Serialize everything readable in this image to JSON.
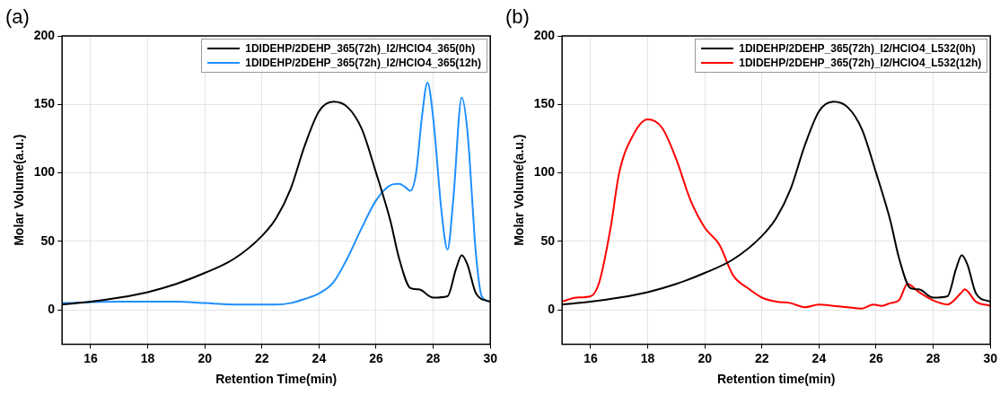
{
  "chart_data": [
    {
      "type": "line",
      "annotations": [
        "(a)"
      ],
      "xlabel": "Retention Time(min)",
      "ylabel": "Molar Volume(a.u.)",
      "xlim": [
        15,
        30
      ],
      "xticks": [
        16,
        18,
        20,
        22,
        24,
        26,
        28,
        30
      ],
      "ylim": [
        -25,
        200
      ],
      "yticks": [
        0,
        50,
        100,
        150,
        200
      ],
      "grid": true,
      "legend": "top right",
      "marker": "none",
      "line_style": "solid",
      "series": [
        {
          "name": "1DIDEHP/2DEHP_365(72h)_I2/HClO4_365(0h)",
          "color": "#000000",
          "x": [
            15,
            16,
            17,
            18,
            19,
            20,
            21,
            22,
            22.5,
            23,
            23.5,
            24,
            24.5,
            25,
            25.5,
            26,
            26.5,
            26.8,
            27.2,
            27.5,
            28,
            28.5,
            28.8,
            29,
            29.2,
            29.5,
            30
          ],
          "values": [
            4,
            6,
            9,
            13,
            19,
            27,
            37,
            54,
            67,
            88,
            120,
            145,
            152,
            148,
            132,
            100,
            65,
            38,
            16,
            15,
            9,
            10,
            30,
            40,
            33,
            12,
            6
          ]
        },
        {
          "name": "1DIDEHP/2DEHP_365(72h)_I2/HClO4_365(12h)",
          "color": "#1e8fff",
          "x": [
            15,
            17,
            18,
            19,
            20,
            21,
            22,
            22.5,
            23,
            23.5,
            24,
            24.5,
            25,
            25.5,
            26,
            26.5,
            26.8,
            27,
            27.2,
            27.4,
            27.6,
            27.8,
            28,
            28.3,
            28.5,
            28.7,
            29,
            29.2,
            29.5,
            29.7,
            30
          ],
          "values": [
            5,
            6,
            6,
            6,
            5,
            4,
            4,
            4,
            5,
            8,
            12,
            20,
            38,
            60,
            80,
            91,
            92,
            90,
            87,
            100,
            140,
            166,
            140,
            70,
            44,
            80,
            155,
            130,
            40,
            10,
            6
          ]
        }
      ]
    },
    {
      "type": "line",
      "annotations": [
        "(b)"
      ],
      "xlabel": "Retention time(min)",
      "ylabel": "Molar Volume(a.u.)",
      "xlim": [
        15,
        30
      ],
      "xticks": [
        16,
        18,
        20,
        22,
        24,
        26,
        28,
        30
      ],
      "ylim": [
        -25,
        200
      ],
      "yticks": [
        0,
        50,
        100,
        150,
        200
      ],
      "grid": true,
      "legend": "top right",
      "marker": "none",
      "line_style": "solid",
      "series": [
        {
          "name": "1DIDEHP/2DEHP_365(72h)_I2/HClO4_L532(0h)",
          "color": "#000000",
          "x": [
            15,
            16,
            17,
            18,
            19,
            20,
            21,
            22,
            22.5,
            23,
            23.5,
            24,
            24.5,
            25,
            25.5,
            26,
            26.5,
            26.8,
            27.2,
            27.5,
            28,
            28.5,
            28.8,
            29,
            29.2,
            29.5,
            30
          ],
          "values": [
            4,
            6,
            9,
            13,
            19,
            27,
            37,
            54,
            67,
            88,
            120,
            145,
            152,
            148,
            132,
            100,
            65,
            38,
            16,
            15,
            9,
            10,
            30,
            40,
            33,
            12,
            6
          ]
        },
        {
          "name": "1DIDEHP/2DEHP_365(72h)_I2/HClO4_L532(12h)",
          "color": "#ff0000",
          "x": [
            15,
            15.5,
            16,
            16.3,
            16.7,
            17,
            17.5,
            18,
            18.5,
            19,
            19.5,
            20,
            20.5,
            21,
            21.5,
            22,
            22.5,
            23,
            23.5,
            24,
            24.5,
            25,
            25.5,
            25.9,
            26.2,
            26.5,
            26.8,
            27.1,
            27.5,
            28,
            28.5,
            29,
            29.1,
            29.5,
            30
          ],
          "values": [
            6,
            9,
            10,
            20,
            60,
            100,
            128,
            139,
            133,
            110,
            80,
            60,
            48,
            25,
            16,
            9,
            6,
            5,
            2,
            4,
            3,
            2,
            1,
            4,
            3,
            5,
            7,
            19,
            13,
            7,
            4,
            13,
            15,
            6,
            3
          ]
        }
      ]
    }
  ]
}
